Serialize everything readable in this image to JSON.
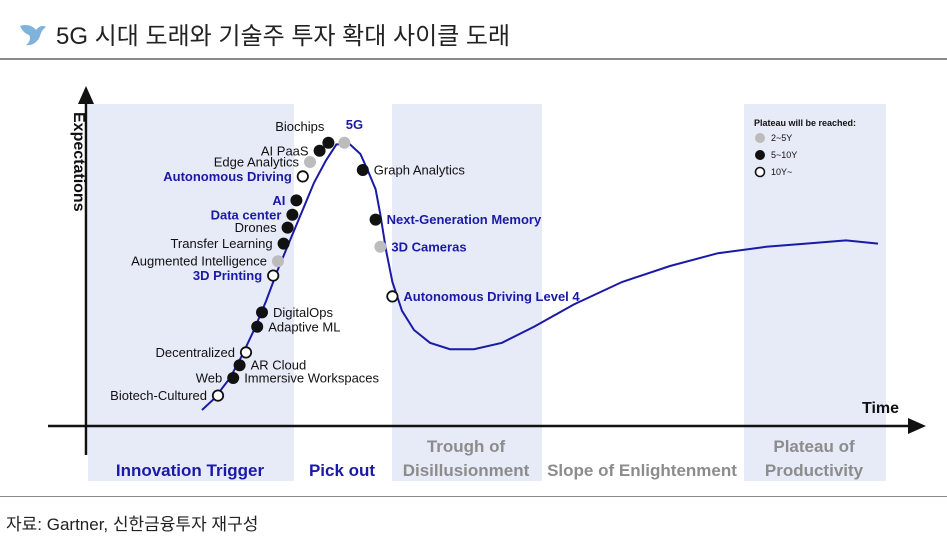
{
  "header": {
    "title": "5G 시대 도래와 기술주 투자 확대 사이클 도래",
    "icon": "bird-logo-icon"
  },
  "footer": {
    "source": "자료: Gartner, 신한금융투자 재구성"
  },
  "colors": {
    "band": "#e7eaf7",
    "curve": "#1a1aa6",
    "grey_dot": "#bcbcbc",
    "black_dot": "#111111",
    "highlight_text": "#1a1aa6",
    "muted_text": "#8c8c8c"
  },
  "chart_data": {
    "type": "scatter",
    "title": "",
    "xlabel": "Time",
    "ylabel": "Expectations",
    "grid": false,
    "legend": {
      "title": "Plateau will be reached:",
      "placement": "top-right",
      "entries": [
        {
          "key": "grey",
          "label": "2~5Y"
        },
        {
          "key": "black",
          "label": "5~10Y"
        },
        {
          "key": "open",
          "label": "10Y~"
        }
      ]
    },
    "phases": [
      {
        "label_lines": [
          "Innovation Trigger"
        ],
        "shaded": true,
        "style": "dark",
        "x": [
          0,
          26
        ]
      },
      {
        "label_lines": [
          "Pick out"
        ],
        "shaded": false,
        "style": "dark",
        "x": [
          26,
          38
        ]
      },
      {
        "label_lines": [
          "Trough of",
          "Disillusionment"
        ],
        "shaded": true,
        "style": "muted",
        "x": [
          38,
          57
        ]
      },
      {
        "label_lines": [
          "Slope of Enlightenment"
        ],
        "shaded": false,
        "style": "muted",
        "x": [
          57,
          82
        ]
      },
      {
        "label_lines": [
          "Plateau of",
          "Productivity"
        ],
        "shaded": true,
        "style": "muted",
        "x": [
          82,
          100
        ]
      }
    ],
    "curve": {
      "x": [
        14.5,
        16,
        18,
        19.5,
        21,
        22.5,
        24,
        25.5,
        27,
        28.5,
        30,
        31.3,
        33,
        34.3,
        35.2,
        36.2,
        36.8,
        37.5,
        38.3,
        39.5,
        41,
        43,
        45.5,
        48.5,
        52,
        56,
        61,
        67,
        73,
        79,
        85,
        90,
        95,
        99
      ],
      "y": [
        5,
        8.5,
        15,
        22,
        30,
        39,
        49,
        58,
        67,
        76,
        83,
        88,
        88,
        85,
        80,
        74,
        66,
        55,
        45,
        36,
        30,
        26,
        24,
        24,
        26,
        31,
        38,
        45,
        50,
        54,
        56,
        57,
        58,
        57
      ]
    },
    "points": [
      {
        "label": "Biotech-Cultured",
        "x": 16.5,
        "y": 9.5,
        "plateau": "10Y~",
        "highlight": false,
        "label_side": "left"
      },
      {
        "label": "Web",
        "x": 18.4,
        "y": 15,
        "plateau": "5~10Y",
        "highlight": false,
        "label_side": "left"
      },
      {
        "label": "Immersive Workspaces",
        "x": 18.4,
        "y": 15,
        "plateau": "5~10Y",
        "highlight": false,
        "label_side": "right"
      },
      {
        "label": "AR Cloud",
        "x": 19.2,
        "y": 19,
        "plateau": "5~10Y",
        "highlight": false,
        "label_side": "right"
      },
      {
        "label": "Decentralized",
        "x": 20,
        "y": 23,
        "plateau": "10Y~",
        "highlight": false,
        "label_side": "left"
      },
      {
        "label": "Adaptive ML",
        "x": 21.4,
        "y": 31,
        "plateau": "5~10Y",
        "highlight": false,
        "label_side": "right"
      },
      {
        "label": "DigitalOps",
        "x": 22,
        "y": 35.5,
        "plateau": "5~10Y",
        "highlight": false,
        "label_side": "right"
      },
      {
        "label": "3D Printing",
        "x": 23.4,
        "y": 47,
        "plateau": "10Y~",
        "highlight": true,
        "label_side": "left"
      },
      {
        "label": "Augmented Intelligence",
        "x": 24,
        "y": 51.5,
        "plateau": "2~5Y",
        "highlight": false,
        "label_side": "left"
      },
      {
        "label": "Transfer Learning",
        "x": 24.7,
        "y": 57,
        "plateau": "5~10Y",
        "highlight": false,
        "label_side": "left"
      },
      {
        "label": "Drones",
        "x": 25.2,
        "y": 62,
        "plateau": "5~10Y",
        "highlight": false,
        "label_side": "left"
      },
      {
        "label": "Data center",
        "x": 25.8,
        "y": 66,
        "plateau": "5~10Y",
        "highlight": true,
        "label_side": "left"
      },
      {
        "label": "AI",
        "x": 26.3,
        "y": 70.5,
        "plateau": "5~10Y",
        "highlight": true,
        "label_side": "left"
      },
      {
        "label": "Autonomous Driving",
        "x": 27.1,
        "y": 78,
        "plateau": "10Y~",
        "highlight": true,
        "label_side": "left"
      },
      {
        "label": "Edge Analytics",
        "x": 28,
        "y": 82.5,
        "plateau": "2~5Y",
        "highlight": false,
        "label_side": "left"
      },
      {
        "label": "AI PaaS",
        "x": 29.2,
        "y": 86,
        "plateau": "5~10Y",
        "highlight": false,
        "label_side": "left"
      },
      {
        "label": "Biochips",
        "x": 30.3,
        "y": 88.5,
        "plateau": "5~10Y",
        "highlight": false,
        "label_side": "above-left"
      },
      {
        "label": "5G",
        "x": 32.3,
        "y": 88.5,
        "plateau": "2~5Y",
        "highlight": true,
        "label_side": "above"
      },
      {
        "label": "Graph Analytics",
        "x": 34.6,
        "y": 80,
        "plateau": "5~10Y",
        "highlight": false,
        "label_side": "right"
      },
      {
        "label": "Next-Generation Memory",
        "x": 36.2,
        "y": 64.5,
        "plateau": "5~10Y",
        "highlight": true,
        "label_side": "right"
      },
      {
        "label": "3D Cameras",
        "x": 36.8,
        "y": 56,
        "plateau": "2~5Y",
        "highlight": true,
        "label_side": "right"
      },
      {
        "label": "Autonomous Driving Level 4",
        "x": 38.3,
        "y": 40.5,
        "plateau": "10Y~",
        "highlight": true,
        "label_side": "right"
      }
    ]
  }
}
